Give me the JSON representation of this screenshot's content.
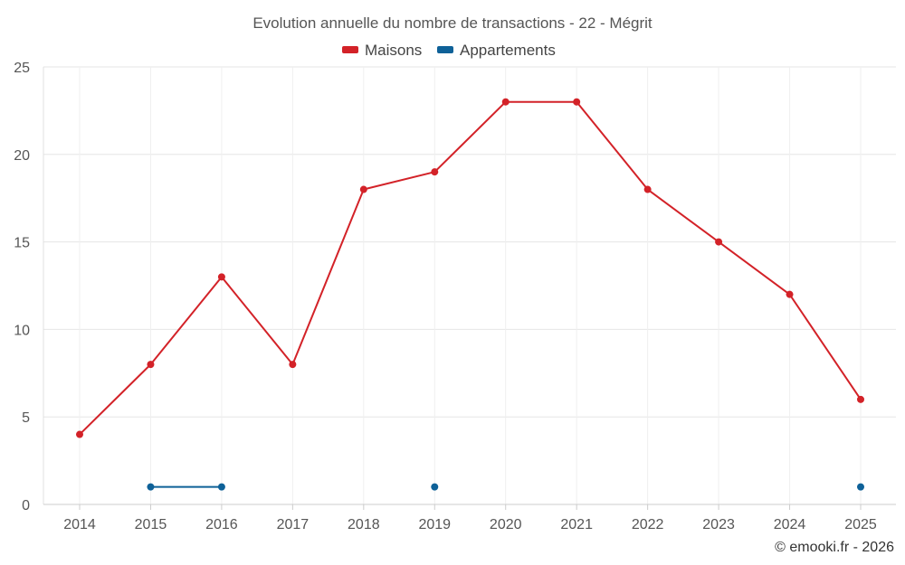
{
  "chart_data": {
    "type": "line",
    "title": "Evolution annuelle du nombre de transactions - 22 - Mégrit",
    "categories": [
      "2014",
      "2015",
      "2016",
      "2017",
      "2018",
      "2019",
      "2020",
      "2021",
      "2022",
      "2023",
      "2024",
      "2025"
    ],
    "series": [
      {
        "name": "Maisons",
        "color": "#d32228",
        "values": [
          4,
          8,
          13,
          8,
          18,
          19,
          23,
          23,
          18,
          15,
          12,
          6
        ]
      },
      {
        "name": "Appartements",
        "color": "#0e6198",
        "values": [
          null,
          1,
          1,
          null,
          null,
          1,
          null,
          null,
          null,
          null,
          null,
          1
        ]
      }
    ],
    "ylim": [
      0,
      25
    ],
    "yticks": [
      0,
      5,
      10,
      15,
      20,
      25
    ],
    "legend_position": "top-center",
    "grid": true
  },
  "credit": "© emooki.fr - 2026"
}
